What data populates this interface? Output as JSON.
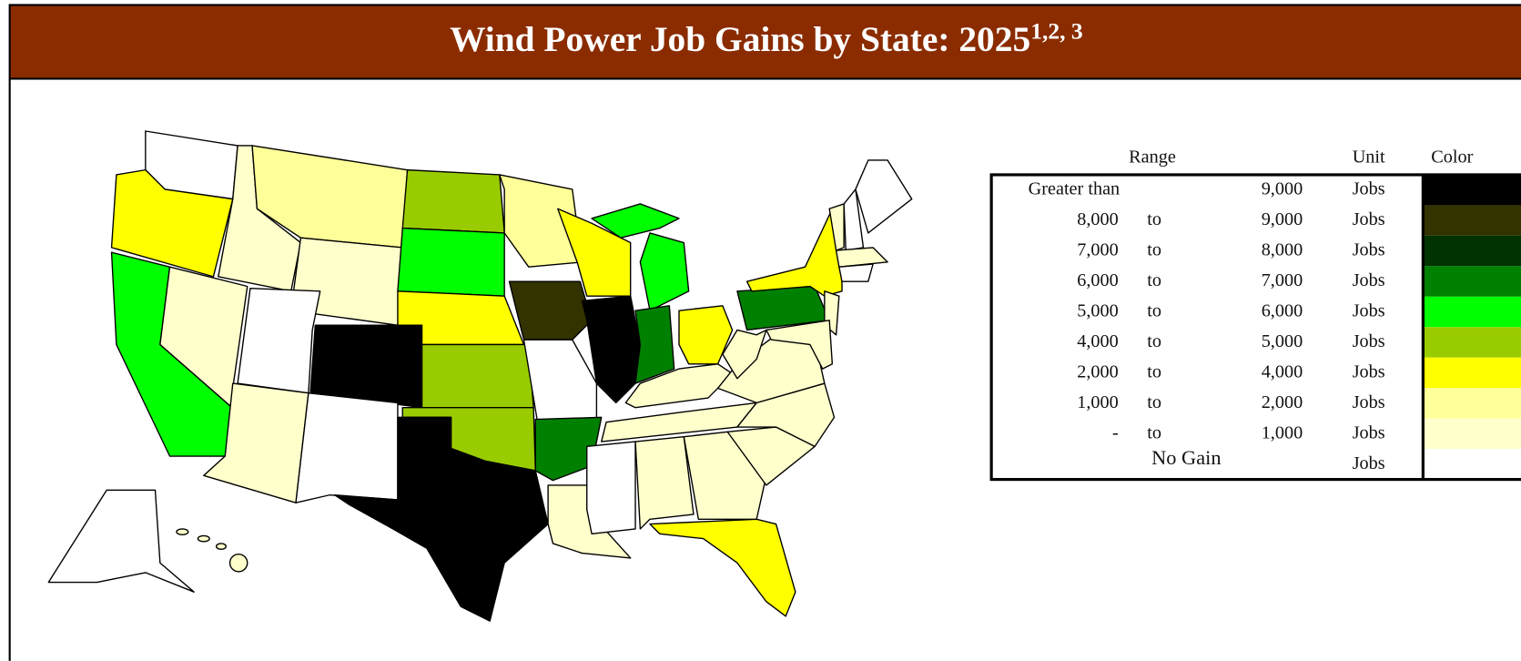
{
  "title": {
    "text": "Wind Power Job Gains by State: 2025",
    "superscript": "1,2, 3"
  },
  "legend": {
    "header": {
      "range": "Range",
      "unit": "Unit",
      "color": "Color"
    },
    "rows": [
      {
        "from": "Greater than",
        "upper": "9,000",
        "unit": "Jobs",
        "color": "#000000"
      },
      {
        "from": "8,000",
        "to": "to",
        "upper": "9,000",
        "unit": "Jobs",
        "color": "#333300"
      },
      {
        "from": "7,000",
        "to": "to",
        "upper": "8,000",
        "unit": "Jobs",
        "color": "#003300"
      },
      {
        "from": "6,000",
        "to": "to",
        "upper": "7,000",
        "unit": "Jobs",
        "color": "#008000"
      },
      {
        "from": "5,000",
        "to": "to",
        "upper": "6,000",
        "unit": "Jobs",
        "color": "#00ff00"
      },
      {
        "from": "4,000",
        "to": "to",
        "upper": "5,000",
        "unit": "Jobs",
        "color": "#99cc00"
      },
      {
        "from": "2,000",
        "to": "to",
        "upper": "4,000",
        "unit": "Jobs",
        "color": "#ffff00"
      },
      {
        "from": "1,000",
        "to": "to",
        "upper": "2,000",
        "unit": "Jobs",
        "color": "#ffff99"
      },
      {
        "from": "-",
        "to": "to",
        "upper": "1,000",
        "unit": "Jobs",
        "color": "#ffffcc"
      },
      {
        "label": "No Gain",
        "unit": "Jobs",
        "color": "#ffffff"
      }
    ]
  }
}
